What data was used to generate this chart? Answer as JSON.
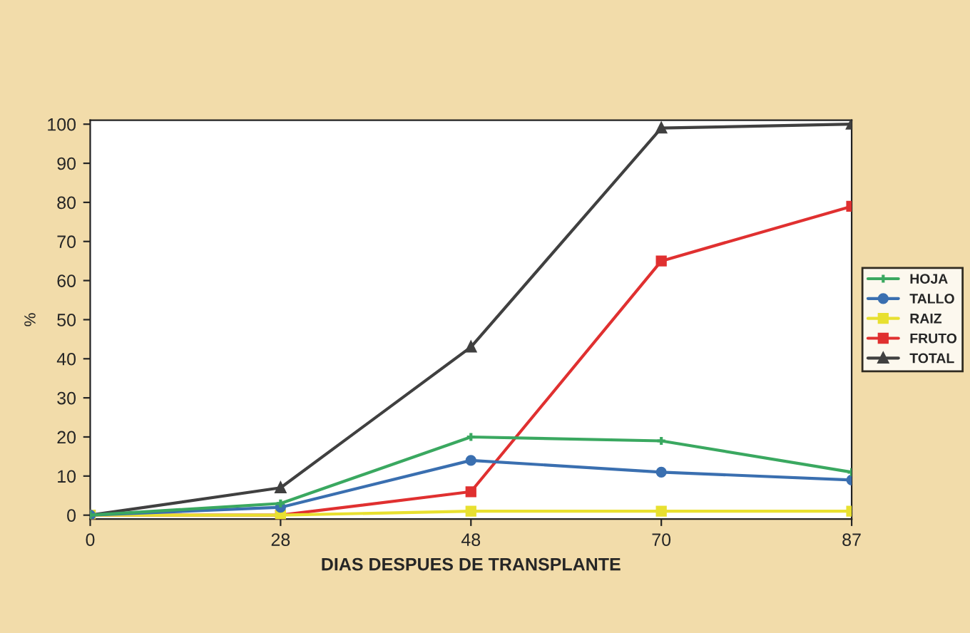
{
  "chart_data": {
    "type": "line",
    "xlabel": "DIAS DESPUES DE TRANSPLANTE",
    "ylabel": "%",
    "categories": [
      "0",
      "28",
      "48",
      "70",
      "87"
    ],
    "series": [
      {
        "name": "HOJA",
        "color": "#3aa860",
        "marker": "cross",
        "values": [
          0,
          3,
          20,
          19,
          11
        ]
      },
      {
        "name": "TALLO",
        "color": "#3a6fb0",
        "marker": "circle",
        "values": [
          0,
          2,
          14,
          11,
          9
        ]
      },
      {
        "name": "RAIZ",
        "color": "#e8e030",
        "marker": "square",
        "values": [
          0,
          0,
          1,
          1,
          1
        ]
      },
      {
        "name": "FRUTO",
        "color": "#e03030",
        "marker": "square",
        "values": [
          0,
          0,
          6,
          65,
          79
        ]
      },
      {
        "name": "TOTAL",
        "color": "#404040",
        "marker": "triangle",
        "values": [
          0,
          7,
          43,
          99,
          100
        ]
      }
    ],
    "ylim": [
      -1,
      101
    ],
    "yticks": [
      0,
      10,
      20,
      30,
      40,
      50,
      60,
      70,
      80,
      90,
      100
    ],
    "grid": false,
    "legend": "right",
    "line_style": "solid"
  }
}
